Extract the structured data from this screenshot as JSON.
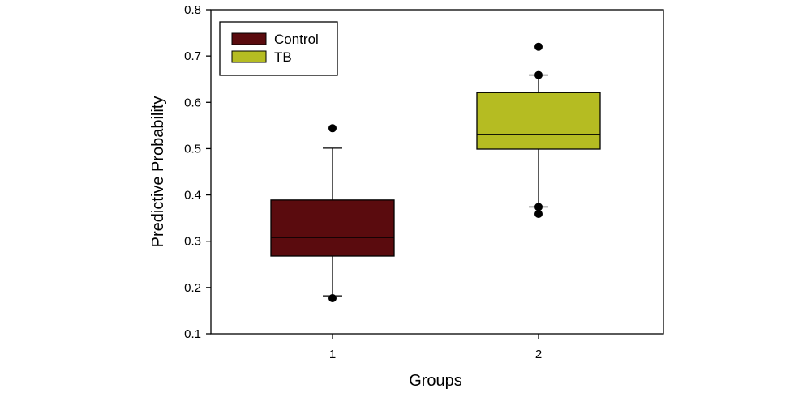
{
  "chart_data": {
    "type": "box",
    "title": "",
    "xlabel": "Groups",
    "ylabel": "Predictive Probability",
    "ylim": [
      0.1,
      0.8
    ],
    "yticks": [
      "0.1",
      "0.2",
      "0.3",
      "0.4",
      "0.5",
      "0.6",
      "0.7",
      "0.8"
    ],
    "categories": [
      "1",
      "2"
    ],
    "legend_position": "top-left",
    "grid": false,
    "series": [
      {
        "name": "Control",
        "category": "1",
        "color": "#5a0b0e",
        "whisker_low": 0.182,
        "q1": 0.268,
        "median": 0.308,
        "q3": 0.389,
        "whisker_high": 0.501,
        "outliers": [
          0.177,
          0.544
        ]
      },
      {
        "name": "TB",
        "category": "2",
        "color": "#b5bc22",
        "whisker_low": 0.374,
        "q1": 0.499,
        "median": 0.53,
        "q3": 0.621,
        "whisker_high": 0.659,
        "outliers": [
          0.359,
          0.374,
          0.659,
          0.72
        ]
      }
    ]
  }
}
